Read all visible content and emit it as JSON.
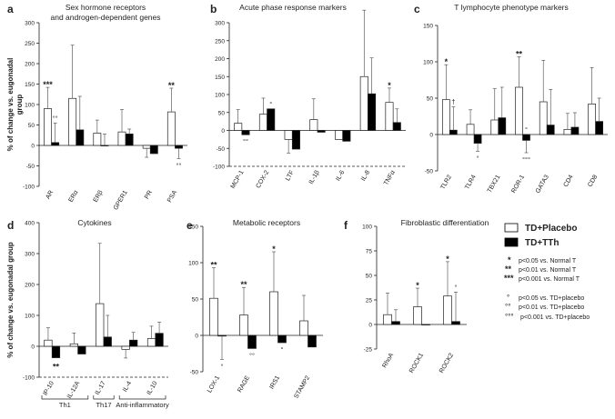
{
  "chart_data": [
    {
      "type": "bar",
      "letter": "a",
      "title": "Sex hormone receptors",
      "title_line2": "and androgen-dependent genes",
      "ylabel": "% of change vs. eugonadal",
      "ylabel_line2": "group",
      "ylim": [
        -100,
        300
      ],
      "yticks": [
        -100,
        -50,
        0,
        50,
        100,
        150,
        200,
        250,
        300
      ],
      "categories": [
        "AR",
        "ERα",
        "ERβ",
        "GPER1",
        "PR",
        "PSA"
      ],
      "series": [
        {
          "name": "TD+Placebo",
          "values": [
            90,
            115,
            30,
            33,
            -7,
            82
          ],
          "err": [
            52,
            130,
            32,
            55,
            22,
            58
          ]
        },
        {
          "name": "TD+TTh",
          "values": [
            7,
            38,
            0,
            28,
            -20,
            -7
          ],
          "err": [
            48,
            82,
            28,
            12,
            0,
            25
          ]
        }
      ],
      "annotations": [
        {
          "cat": 0,
          "series": 0,
          "pos": "above",
          "text": "***"
        },
        {
          "cat": 0,
          "series": 1,
          "pos": "above",
          "text": "°°"
        },
        {
          "cat": 5,
          "series": 0,
          "pos": "above",
          "text": "**"
        },
        {
          "cat": 5,
          "series": 1,
          "pos": "below",
          "text": "°°"
        }
      ]
    },
    {
      "type": "bar",
      "letter": "b",
      "title": "Acute phase response markers",
      "ylim": [
        -100,
        300
      ],
      "yticks": [
        -100,
        -50,
        0,
        50,
        100,
        150,
        200,
        250,
        300
      ],
      "categories": [
        "MCP-1",
        "COX-2",
        "LTF",
        "IL-1β",
        "IL-6",
        "IL-8",
        "TNFα"
      ],
      "series": [
        {
          "name": "TD+Placebo",
          "values": [
            20,
            45,
            -25,
            30,
            -25,
            150,
            78
          ],
          "err": [
            38,
            45,
            38,
            58,
            0,
            185,
            40
          ]
        },
        {
          "name": "TD+TTh",
          "values": [
            -12,
            60,
            -52,
            -5,
            -30,
            102,
            22
          ],
          "err": [
            0,
            0,
            0,
            0,
            0,
            100,
            38
          ]
        }
      ],
      "annotations": [
        {
          "cat": 0,
          "series": 1,
          "pos": "below",
          "text": "°°"
        },
        {
          "cat": 1,
          "series": 1,
          "pos": "above",
          "text": "°"
        },
        {
          "cat": 6,
          "series": 0,
          "pos": "above",
          "text": "*"
        }
      ]
    },
    {
      "type": "bar",
      "letter": "c",
      "title": "T lymphocyte phenotype markers",
      "ylim": [
        -50,
        150
      ],
      "yticks": [
        -50,
        0,
        50,
        100,
        150
      ],
      "categories": [
        "TLR2",
        "TLR4",
        "TBX21",
        "ROR-1",
        "GATA3",
        "CD4",
        "CD8"
      ],
      "series": [
        {
          "name": "TD+Placebo",
          "values": [
            48,
            14,
            20,
            65,
            45,
            7,
            42
          ],
          "err": [
            48,
            20,
            43,
            42,
            57,
            22,
            50
          ]
        },
        {
          "name": "TD+TTh",
          "values": [
            6,
            -12,
            23,
            -8,
            13,
            10,
            18
          ],
          "err": [
            32,
            11,
            42,
            17,
            49,
            20,
            32
          ]
        }
      ],
      "annotations": [
        {
          "cat": 0,
          "series": 0,
          "pos": "above",
          "text": "*"
        },
        {
          "cat": 0,
          "series": 1,
          "pos": "above",
          "text": "†"
        },
        {
          "cat": 1,
          "series": 1,
          "pos": "below",
          "text": "°"
        },
        {
          "cat": 3,
          "series": 0,
          "pos": "above",
          "text": "**"
        },
        {
          "cat": 3,
          "series": 1,
          "pos": "above",
          "text": "°"
        },
        {
          "cat": 3,
          "series": 1,
          "pos": "below",
          "text": "°°°"
        }
      ]
    },
    {
      "type": "bar",
      "letter": "d",
      "title": "Cytokines",
      "ylabel": "% of change vs. eugonadal group",
      "ylim": [
        -100,
        400
      ],
      "yticks": [
        -100,
        0,
        100,
        200,
        300,
        400
      ],
      "categories": [
        "IP-10",
        "IL-12A",
        "IL-17",
        "IL-4",
        "IL-10"
      ],
      "series": [
        {
          "name": "TD+Placebo",
          "values": [
            20,
            8,
            138,
            -10,
            25
          ],
          "err": [
            40,
            35,
            195,
            28,
            40
          ]
        },
        {
          "name": "TD+TTh",
          "values": [
            -37,
            -25,
            30,
            20,
            42
          ],
          "err": [
            0,
            0,
            70,
            25,
            36
          ]
        }
      ],
      "annotations": [
        {
          "cat": 0,
          "series": 1,
          "pos": "below",
          "text": "**"
        }
      ],
      "groups": [
        {
          "label": "Th1",
          "from": 0,
          "to": 1
        },
        {
          "label": "Th17",
          "from": 2,
          "to": 2
        },
        {
          "label": "Anti-inflammatory",
          "from": 3,
          "to": 4
        }
      ]
    },
    {
      "type": "bar",
      "letter": "e",
      "title": "Metabolic receptors",
      "ylim": [
        -50,
        150
      ],
      "yticks": [
        -50,
        0,
        50,
        100,
        150
      ],
      "categories": [
        "LOX-1",
        "RAGE",
        "IRS1",
        "STAMP2"
      ],
      "series": [
        {
          "name": "TD+Placebo",
          "values": [
            51,
            28,
            60,
            20
          ],
          "err": [
            42,
            38,
            55,
            35
          ]
        },
        {
          "name": "TD+TTh",
          "values": [
            -1,
            -18,
            -10,
            -16
          ],
          "err": [
            32,
            0,
            0,
            0
          ]
        }
      ],
      "annotations": [
        {
          "cat": 0,
          "series": 0,
          "pos": "above",
          "text": "**"
        },
        {
          "cat": 0,
          "series": 1,
          "pos": "below",
          "text": "°"
        },
        {
          "cat": 1,
          "series": 0,
          "pos": "above",
          "text": "**"
        },
        {
          "cat": 1,
          "series": 1,
          "pos": "below",
          "text": "°°"
        },
        {
          "cat": 2,
          "series": 0,
          "pos": "above",
          "text": "*"
        },
        {
          "cat": 2,
          "series": 1,
          "pos": "below",
          "text": "°"
        }
      ]
    },
    {
      "type": "bar",
      "letter": "f",
      "title": "Fibroblastic differentiation",
      "ylim": [
        -25,
        100
      ],
      "yticks": [
        -25,
        0,
        25,
        50,
        75,
        100
      ],
      "categories": [
        "RhoA",
        "ROCK1",
        "ROCK2"
      ],
      "series": [
        {
          "name": "TD+Placebo",
          "values": [
            10,
            18,
            29
          ],
          "err": [
            22,
            19,
            35
          ]
        },
        {
          "name": "TD+TTh",
          "values": [
            3,
            0,
            3
          ],
          "err": [
            12,
            0,
            30
          ]
        }
      ],
      "annotations": [
        {
          "cat": 1,
          "series": 0,
          "pos": "above",
          "text": "*"
        },
        {
          "cat": 2,
          "series": 0,
          "pos": "above",
          "text": "*"
        },
        {
          "cat": 2,
          "series": 1,
          "pos": "above",
          "text": "°"
        }
      ]
    }
  ],
  "legend": {
    "entries": [
      {
        "name": "TD+Placebo",
        "fill": "#ffffff"
      },
      {
        "name": "TD+TTh",
        "fill": "#000000"
      }
    ],
    "notes": [
      {
        "sym": "*",
        "text": "p<0.05 vs. Normal T"
      },
      {
        "sym": "**",
        "text": "p<0.01 vs. Normal T"
      },
      {
        "sym": "***",
        "text": "p<0.001 vs. Normal T"
      },
      {
        "sym": "°",
        "text": "p<0.05 vs. TD+placebo"
      },
      {
        "sym": "°°",
        "text": "p<0.01 vs. TD+placebo"
      },
      {
        "sym": "°°°",
        "text": "p<0.001 vs. TD+placebo"
      }
    ]
  },
  "colors": {
    "placebo": "#ffffff",
    "tth": "#000000",
    "axis": "#222222"
  }
}
